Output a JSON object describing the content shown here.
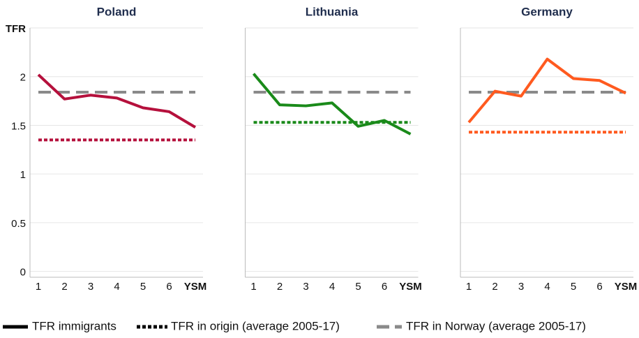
{
  "chart_data": [
    {
      "type": "line",
      "title": "Poland",
      "categories": [
        "1",
        "2",
        "3",
        "4",
        "5",
        "6",
        "YSM"
      ],
      "ylim": [
        -0.06,
        2.5
      ],
      "yticks": [
        0,
        0.5,
        1,
        1.5,
        2,
        {
          "value": 2.5,
          "label": "TFR"
        }
      ],
      "show_ytick_labels": true,
      "grid": true,
      "series": [
        {
          "name": "TFR immigrants",
          "color": "#b5103c",
          "dash": "solid",
          "values": [
            2.02,
            1.77,
            1.81,
            1.78,
            1.68,
            1.64,
            1.48
          ]
        },
        {
          "name": "TFR in origin (average 2005-17)",
          "color": "#b5103c",
          "dash": "dot",
          "values": [
            1.35,
            1.35,
            1.35,
            1.35,
            1.35,
            1.35,
            1.35
          ]
        },
        {
          "name": "TFR in Norway (average 2005-17)",
          "color": "#8a8a8a",
          "dash": "dash",
          "values": [
            1.84,
            1.84,
            1.84,
            1.84,
            1.84,
            1.84,
            1.84
          ]
        }
      ]
    },
    {
      "type": "line",
      "title": "Lithuania",
      "categories": [
        "1",
        "2",
        "3",
        "4",
        "5",
        "6",
        "YSM"
      ],
      "ylim": [
        -0.06,
        2.5
      ],
      "yticks": [
        0,
        0.5,
        1,
        1.5,
        2,
        2.5
      ],
      "show_ytick_labels": false,
      "grid": true,
      "series": [
        {
          "color": "#1a8a1a",
          "dash": "solid",
          "values": [
            2.03,
            1.71,
            1.7,
            1.73,
            1.49,
            1.55,
            1.41
          ]
        },
        {
          "color": "#1a8a1a",
          "dash": "dot",
          "values": [
            1.53,
            1.53,
            1.53,
            1.53,
            1.53,
            1.53,
            1.53
          ]
        },
        {
          "color": "#8a8a8a",
          "dash": "dash",
          "values": [
            1.84,
            1.84,
            1.84,
            1.84,
            1.84,
            1.84,
            1.84
          ]
        }
      ]
    },
    {
      "type": "line",
      "title": "Germany",
      "categories": [
        "1",
        "2",
        "3",
        "4",
        "5",
        "6",
        "YSM"
      ],
      "ylim": [
        -0.06,
        2.5
      ],
      "yticks": [
        0,
        0.5,
        1,
        1.5,
        2,
        2.5
      ],
      "show_ytick_labels": false,
      "grid": true,
      "series": [
        {
          "color": "#ff5a1f",
          "dash": "solid",
          "values": [
            1.53,
            1.85,
            1.8,
            2.18,
            1.98,
            1.96,
            1.83
          ]
        },
        {
          "color": "#ff5a1f",
          "dash": "dot",
          "values": [
            1.43,
            1.43,
            1.43,
            1.43,
            1.43,
            1.43,
            1.43
          ]
        },
        {
          "color": "#8a8a8a",
          "dash": "dash",
          "values": [
            1.84,
            1.84,
            1.84,
            1.84,
            1.84,
            1.84,
            1.84
          ]
        }
      ]
    }
  ]
}
